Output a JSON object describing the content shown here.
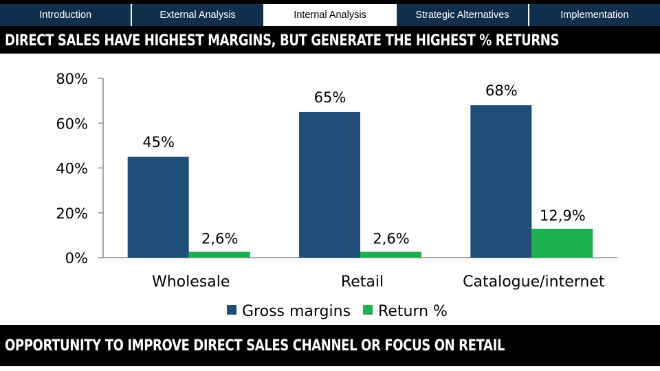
{
  "nav": {
    "tabs": [
      {
        "label": "Introduction",
        "active": false
      },
      {
        "label": "External Analysis",
        "active": false
      },
      {
        "label": "Internal Analysis",
        "active": true
      },
      {
        "label": "Strategic Alternatives",
        "active": false
      },
      {
        "label": "Implementation",
        "active": false
      }
    ]
  },
  "headline": "DIRECT SALES HAVE HIGHEST MARGINS, BUT GENERATE THE HIGHEST % RETURNS",
  "footer": "OPPORTUNITY TO IMPROVE DIRECT SALES CHANNEL OR FOCUS ON RETAIL",
  "colors": {
    "nav_tab": "#102f4c",
    "gross_margins": "#1f4e79",
    "return_pct": "#1cb050"
  },
  "chart_data": {
    "type": "bar",
    "categories": [
      "Wholesale",
      "Retail",
      "Catalogue/internet"
    ],
    "series": [
      {
        "name": "Gross margins",
        "values": [
          45,
          65,
          68
        ],
        "labels": [
          "45%",
          "65%",
          "68%"
        ]
      },
      {
        "name": "Return %",
        "values": [
          2.6,
          2.6,
          12.9
        ],
        "labels": [
          "2,6%",
          "2,6%",
          "12,9%"
        ]
      }
    ],
    "y_ticks": [
      0,
      20,
      40,
      60,
      80
    ],
    "y_tick_labels": [
      "0%",
      "20%",
      "40%",
      "60%",
      "80%"
    ],
    "ylim": [
      0,
      80
    ],
    "grid": false,
    "legend_position": "bottom"
  }
}
